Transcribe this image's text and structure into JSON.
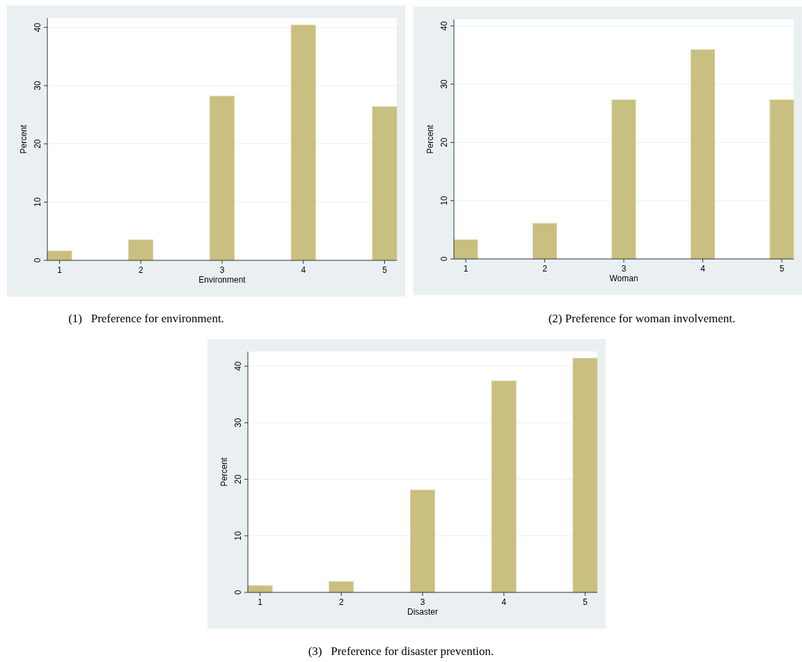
{
  "chart_data": [
    {
      "type": "bar",
      "x": [
        1,
        2,
        3,
        4,
        5
      ],
      "values": [
        1.6,
        3.5,
        28.2,
        40.4,
        26.4
      ],
      "color": "#c8bf80",
      "xlabel": "Environment",
      "ylabel": "Percent",
      "xlim": [
        0.85,
        5.15
      ],
      "xticks": [
        1,
        2,
        3,
        4,
        5
      ],
      "ylim": [
        0,
        41.6
      ],
      "yticks": [
        0,
        10,
        20,
        30,
        40
      ],
      "grid": "y",
      "annotations": [
        "(1)   Preference for environment."
      ]
    },
    {
      "type": "bar",
      "x": [
        1,
        2,
        3,
        4,
        5
      ],
      "values": [
        3.3,
        6.1,
        27.3,
        35.9,
        27.3
      ],
      "color": "#c8bf80",
      "xlabel": "Woman",
      "ylabel": "Percent",
      "xlim": [
        0.85,
        5.15
      ],
      "xticks": [
        1,
        2,
        3,
        4,
        5
      ],
      "ylim": [
        0,
        41.1
      ],
      "yticks": [
        0,
        10,
        20,
        30,
        40
      ],
      "grid": "y",
      "annotations": [
        "(2) Preference for woman involvement."
      ]
    },
    {
      "type": "bar",
      "x": [
        1,
        2,
        3,
        4,
        5
      ],
      "values": [
        1.2,
        1.9,
        18.1,
        37.4,
        41.4
      ],
      "color": "#c8bf80",
      "xlabel": "Disaster",
      "ylabel": "Percent",
      "xlim": [
        0.85,
        5.15
      ],
      "xticks": [
        1,
        2,
        3,
        4,
        5
      ],
      "ylim": [
        0,
        42.6
      ],
      "yticks": [
        0,
        10,
        20,
        30,
        40
      ],
      "grid": "y",
      "annotations": [
        "(3)   Preference for disaster prevention."
      ]
    }
  ]
}
